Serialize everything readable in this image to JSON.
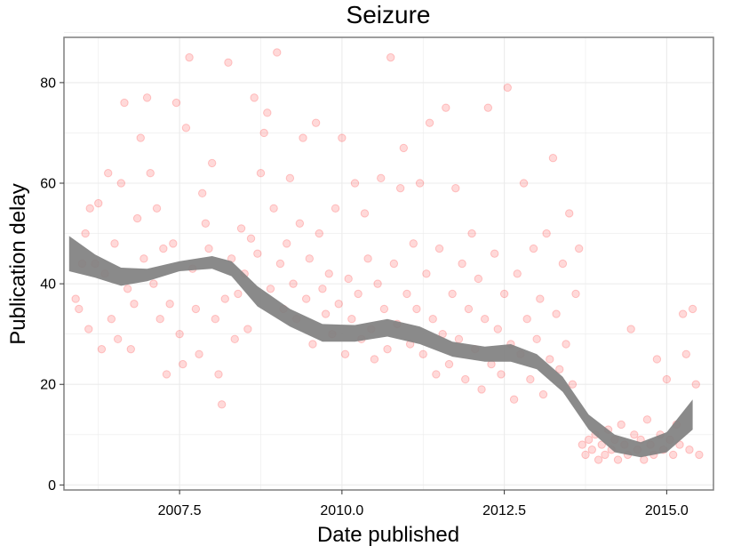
{
  "chart_data": {
    "type": "scatter",
    "title": "Seizure",
    "xlabel": "Date published",
    "ylabel": "Publication delay",
    "xlim": [
      2005.72,
      2015.72
    ],
    "ylim": [
      -1,
      89
    ],
    "x_ticks": [
      2007.5,
      2010.0,
      2012.5,
      2015.0
    ],
    "x_tick_labels": [
      "2007.5",
      "2010.0",
      "2012.5",
      "2015.0"
    ],
    "y_ticks": [
      0,
      20,
      40,
      60,
      80
    ],
    "y_tick_labels": [
      "0",
      "20",
      "40",
      "60",
      "80"
    ],
    "grid": true,
    "legend": "none",
    "colors": {
      "points": "#ff0000",
      "smooth_band": "#808080",
      "grid": "#ebebeb",
      "panel_border": "#7f7f7f"
    },
    "point_alpha": 0.15,
    "series": [
      {
        "style": "points",
        "points": [
          [
            2005.9,
            37
          ],
          [
            2005.95,
            35
          ],
          [
            2006.0,
            44
          ],
          [
            2006.05,
            50
          ],
          [
            2006.1,
            31
          ],
          [
            2006.12,
            55
          ],
          [
            2006.2,
            44
          ],
          [
            2006.25,
            56
          ],
          [
            2006.3,
            27
          ],
          [
            2006.35,
            42
          ],
          [
            2006.4,
            62
          ],
          [
            2006.45,
            33
          ],
          [
            2006.5,
            48
          ],
          [
            2006.55,
            29
          ],
          [
            2006.6,
            60
          ],
          [
            2006.65,
            76
          ],
          [
            2006.7,
            39
          ],
          [
            2006.75,
            27
          ],
          [
            2006.8,
            36
          ],
          [
            2006.85,
            53
          ],
          [
            2006.9,
            69
          ],
          [
            2006.95,
            45
          ],
          [
            2007.0,
            77
          ],
          [
            2007.05,
            62
          ],
          [
            2007.1,
            40
          ],
          [
            2007.15,
            55
          ],
          [
            2007.2,
            33
          ],
          [
            2007.25,
            47
          ],
          [
            2007.3,
            22
          ],
          [
            2007.35,
            36
          ],
          [
            2007.4,
            48
          ],
          [
            2007.45,
            76
          ],
          [
            2007.5,
            30
          ],
          [
            2007.55,
            24
          ],
          [
            2007.6,
            71
          ],
          [
            2007.65,
            85
          ],
          [
            2007.7,
            43
          ],
          [
            2007.75,
            35
          ],
          [
            2007.8,
            26
          ],
          [
            2007.85,
            58
          ],
          [
            2007.9,
            52
          ],
          [
            2007.95,
            47
          ],
          [
            2008.0,
            64
          ],
          [
            2008.05,
            33
          ],
          [
            2008.1,
            22
          ],
          [
            2008.15,
            16
          ],
          [
            2008.2,
            37
          ],
          [
            2008.25,
            84
          ],
          [
            2008.3,
            45
          ],
          [
            2008.35,
            29
          ],
          [
            2008.4,
            38
          ],
          [
            2008.45,
            51
          ],
          [
            2008.5,
            42
          ],
          [
            2008.55,
            31
          ],
          [
            2008.6,
            49
          ],
          [
            2008.65,
            77
          ],
          [
            2008.7,
            46
          ],
          [
            2008.75,
            62
          ],
          [
            2008.8,
            70
          ],
          [
            2008.85,
            74
          ],
          [
            2008.9,
            39
          ],
          [
            2008.95,
            55
          ],
          [
            2009.0,
            86
          ],
          [
            2009.05,
            44
          ],
          [
            2009.1,
            35
          ],
          [
            2009.15,
            48
          ],
          [
            2009.2,
            61
          ],
          [
            2009.25,
            40
          ],
          [
            2009.3,
            33
          ],
          [
            2009.35,
            52
          ],
          [
            2009.4,
            69
          ],
          [
            2009.45,
            37
          ],
          [
            2009.5,
            45
          ],
          [
            2009.55,
            28
          ],
          [
            2009.6,
            72
          ],
          [
            2009.65,
            50
          ],
          [
            2009.7,
            39
          ],
          [
            2009.75,
            34
          ],
          [
            2009.8,
            42
          ],
          [
            2009.85,
            30
          ],
          [
            2009.9,
            55
          ],
          [
            2009.95,
            36
          ],
          [
            2010.0,
            69
          ],
          [
            2010.05,
            26
          ],
          [
            2010.1,
            41
          ],
          [
            2010.15,
            33
          ],
          [
            2010.2,
            60
          ],
          [
            2010.25,
            38
          ],
          [
            2010.3,
            29
          ],
          [
            2010.35,
            54
          ],
          [
            2010.4,
            45
          ],
          [
            2010.45,
            31
          ],
          [
            2010.5,
            25
          ],
          [
            2010.55,
            40
          ],
          [
            2010.6,
            61
          ],
          [
            2010.65,
            35
          ],
          [
            2010.7,
            27
          ],
          [
            2010.75,
            85
          ],
          [
            2010.8,
            44
          ],
          [
            2010.85,
            32
          ],
          [
            2010.9,
            59
          ],
          [
            2010.95,
            67
          ],
          [
            2011.0,
            38
          ],
          [
            2011.05,
            28
          ],
          [
            2011.1,
            48
          ],
          [
            2011.15,
            35
          ],
          [
            2011.2,
            60
          ],
          [
            2011.25,
            26
          ],
          [
            2011.3,
            42
          ],
          [
            2011.35,
            72
          ],
          [
            2011.4,
            33
          ],
          [
            2011.45,
            22
          ],
          [
            2011.5,
            47
          ],
          [
            2011.55,
            30
          ],
          [
            2011.6,
            75
          ],
          [
            2011.65,
            24
          ],
          [
            2011.7,
            38
          ],
          [
            2011.75,
            59
          ],
          [
            2011.8,
            29
          ],
          [
            2011.85,
            44
          ],
          [
            2011.9,
            21
          ],
          [
            2011.95,
            35
          ],
          [
            2012.0,
            50
          ],
          [
            2012.05,
            27
          ],
          [
            2012.1,
            41
          ],
          [
            2012.15,
            19
          ],
          [
            2012.2,
            33
          ],
          [
            2012.25,
            75
          ],
          [
            2012.3,
            24
          ],
          [
            2012.35,
            46
          ],
          [
            2012.4,
            31
          ],
          [
            2012.45,
            22
          ],
          [
            2012.5,
            38
          ],
          [
            2012.55,
            79
          ],
          [
            2012.6,
            28
          ],
          [
            2012.65,
            17
          ],
          [
            2012.7,
            42
          ],
          [
            2012.75,
            26
          ],
          [
            2012.8,
            60
          ],
          [
            2012.85,
            33
          ],
          [
            2012.9,
            21
          ],
          [
            2012.95,
            47
          ],
          [
            2013.0,
            29
          ],
          [
            2013.05,
            37
          ],
          [
            2013.1,
            18
          ],
          [
            2013.15,
            50
          ],
          [
            2013.2,
            25
          ],
          [
            2013.25,
            65
          ],
          [
            2013.3,
            34
          ],
          [
            2013.35,
            23
          ],
          [
            2013.4,
            44
          ],
          [
            2013.45,
            28
          ],
          [
            2013.5,
            54
          ],
          [
            2013.55,
            20
          ],
          [
            2013.6,
            38
          ],
          [
            2013.65,
            47
          ],
          [
            2013.7,
            8
          ],
          [
            2013.75,
            6
          ],
          [
            2013.8,
            9
          ],
          [
            2013.85,
            7
          ],
          [
            2013.9,
            10
          ],
          [
            2013.95,
            5
          ],
          [
            2014.0,
            8
          ],
          [
            2014.05,
            6
          ],
          [
            2014.1,
            11
          ],
          [
            2014.15,
            7
          ],
          [
            2014.2,
            9
          ],
          [
            2014.25,
            5
          ],
          [
            2014.3,
            12
          ],
          [
            2014.35,
            8
          ],
          [
            2014.4,
            6
          ],
          [
            2014.45,
            31
          ],
          [
            2014.5,
            10
          ],
          [
            2014.55,
            7
          ],
          [
            2014.6,
            9
          ],
          [
            2014.65,
            5
          ],
          [
            2014.7,
            13
          ],
          [
            2014.75,
            8
          ],
          [
            2014.8,
            6
          ],
          [
            2014.85,
            25
          ],
          [
            2014.9,
            10
          ],
          [
            2014.95,
            7
          ],
          [
            2015.0,
            21
          ],
          [
            2015.05,
            9
          ],
          [
            2015.1,
            6
          ],
          [
            2015.15,
            12
          ],
          [
            2015.2,
            8
          ],
          [
            2015.25,
            34
          ],
          [
            2015.3,
            26
          ],
          [
            2015.35,
            7
          ],
          [
            2015.4,
            35
          ],
          [
            2015.45,
            20
          ],
          [
            2015.5,
            6
          ]
        ]
      },
      {
        "style": "smooth_band",
        "x": [
          2005.8,
          2006.2,
          2006.6,
          2007.0,
          2007.5,
          2008.0,
          2008.3,
          2008.7,
          2009.2,
          2009.7,
          2010.2,
          2010.7,
          2011.2,
          2011.7,
          2012.2,
          2012.6,
          2013.0,
          2013.4,
          2013.8,
          2014.2,
          2014.6,
          2015.0,
          2015.4
        ],
        "lower": [
          42.5,
          41.2,
          39.6,
          40.5,
          42.5,
          43.0,
          41.5,
          35.5,
          31.5,
          28.5,
          28.5,
          29.5,
          28.0,
          25.5,
          24.5,
          24.5,
          23.0,
          18.5,
          11.0,
          6.5,
          5.5,
          6.5,
          11.0
        ],
        "upper": [
          49.5,
          45.8,
          43.2,
          43.0,
          44.5,
          45.5,
          44.5,
          39.5,
          35.0,
          32.0,
          31.8,
          33.0,
          31.5,
          28.5,
          27.5,
          28.0,
          26.0,
          21.5,
          14.0,
          10.0,
          8.5,
          10.5,
          17.0
        ]
      }
    ]
  }
}
